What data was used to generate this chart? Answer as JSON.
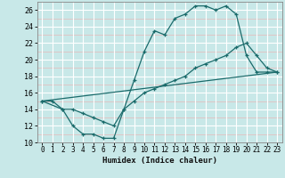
{
  "xlabel": "Humidex (Indice chaleur)",
  "bg_color": "#c8e8e8",
  "grid_color": "#ffffff",
  "grid_minor_color": "#e8b8b8",
  "line_color": "#1a6b6b",
  "xlim": [
    -0.5,
    23.5
  ],
  "ylim": [
    10,
    27
  ],
  "xticks": [
    0,
    1,
    2,
    3,
    4,
    5,
    6,
    7,
    8,
    9,
    10,
    11,
    12,
    13,
    14,
    15,
    16,
    17,
    18,
    19,
    20,
    21,
    22,
    23
  ],
  "yticks": [
    10,
    12,
    14,
    16,
    18,
    20,
    22,
    24,
    26
  ],
  "line1_x": [
    0,
    1,
    2,
    3,
    4,
    5,
    6,
    7,
    8,
    9,
    10,
    11,
    12,
    13,
    14,
    15,
    16,
    17,
    18,
    19,
    20,
    21,
    22,
    23
  ],
  "line1_y": [
    15,
    15,
    14,
    12,
    11,
    11,
    10.5,
    10.5,
    14,
    17.5,
    21,
    23.5,
    23,
    25,
    25.5,
    26.5,
    26.5,
    26,
    26.5,
    25.5,
    20.5,
    18.5,
    18.5,
    18.5
  ],
  "line2_x": [
    0,
    2,
    3,
    4,
    5,
    6,
    7,
    8,
    9,
    10,
    11,
    12,
    13,
    14,
    15,
    16,
    17,
    18,
    19,
    20,
    21,
    22,
    23
  ],
  "line2_y": [
    15,
    14,
    14,
    13.5,
    13,
    12.5,
    12,
    14,
    15,
    16,
    16.5,
    17,
    17.5,
    18,
    19,
    19.5,
    20,
    20.5,
    21.5,
    22,
    20.5,
    19,
    18.5
  ],
  "line3_x": [
    0,
    23
  ],
  "line3_y": [
    15,
    18.5
  ]
}
